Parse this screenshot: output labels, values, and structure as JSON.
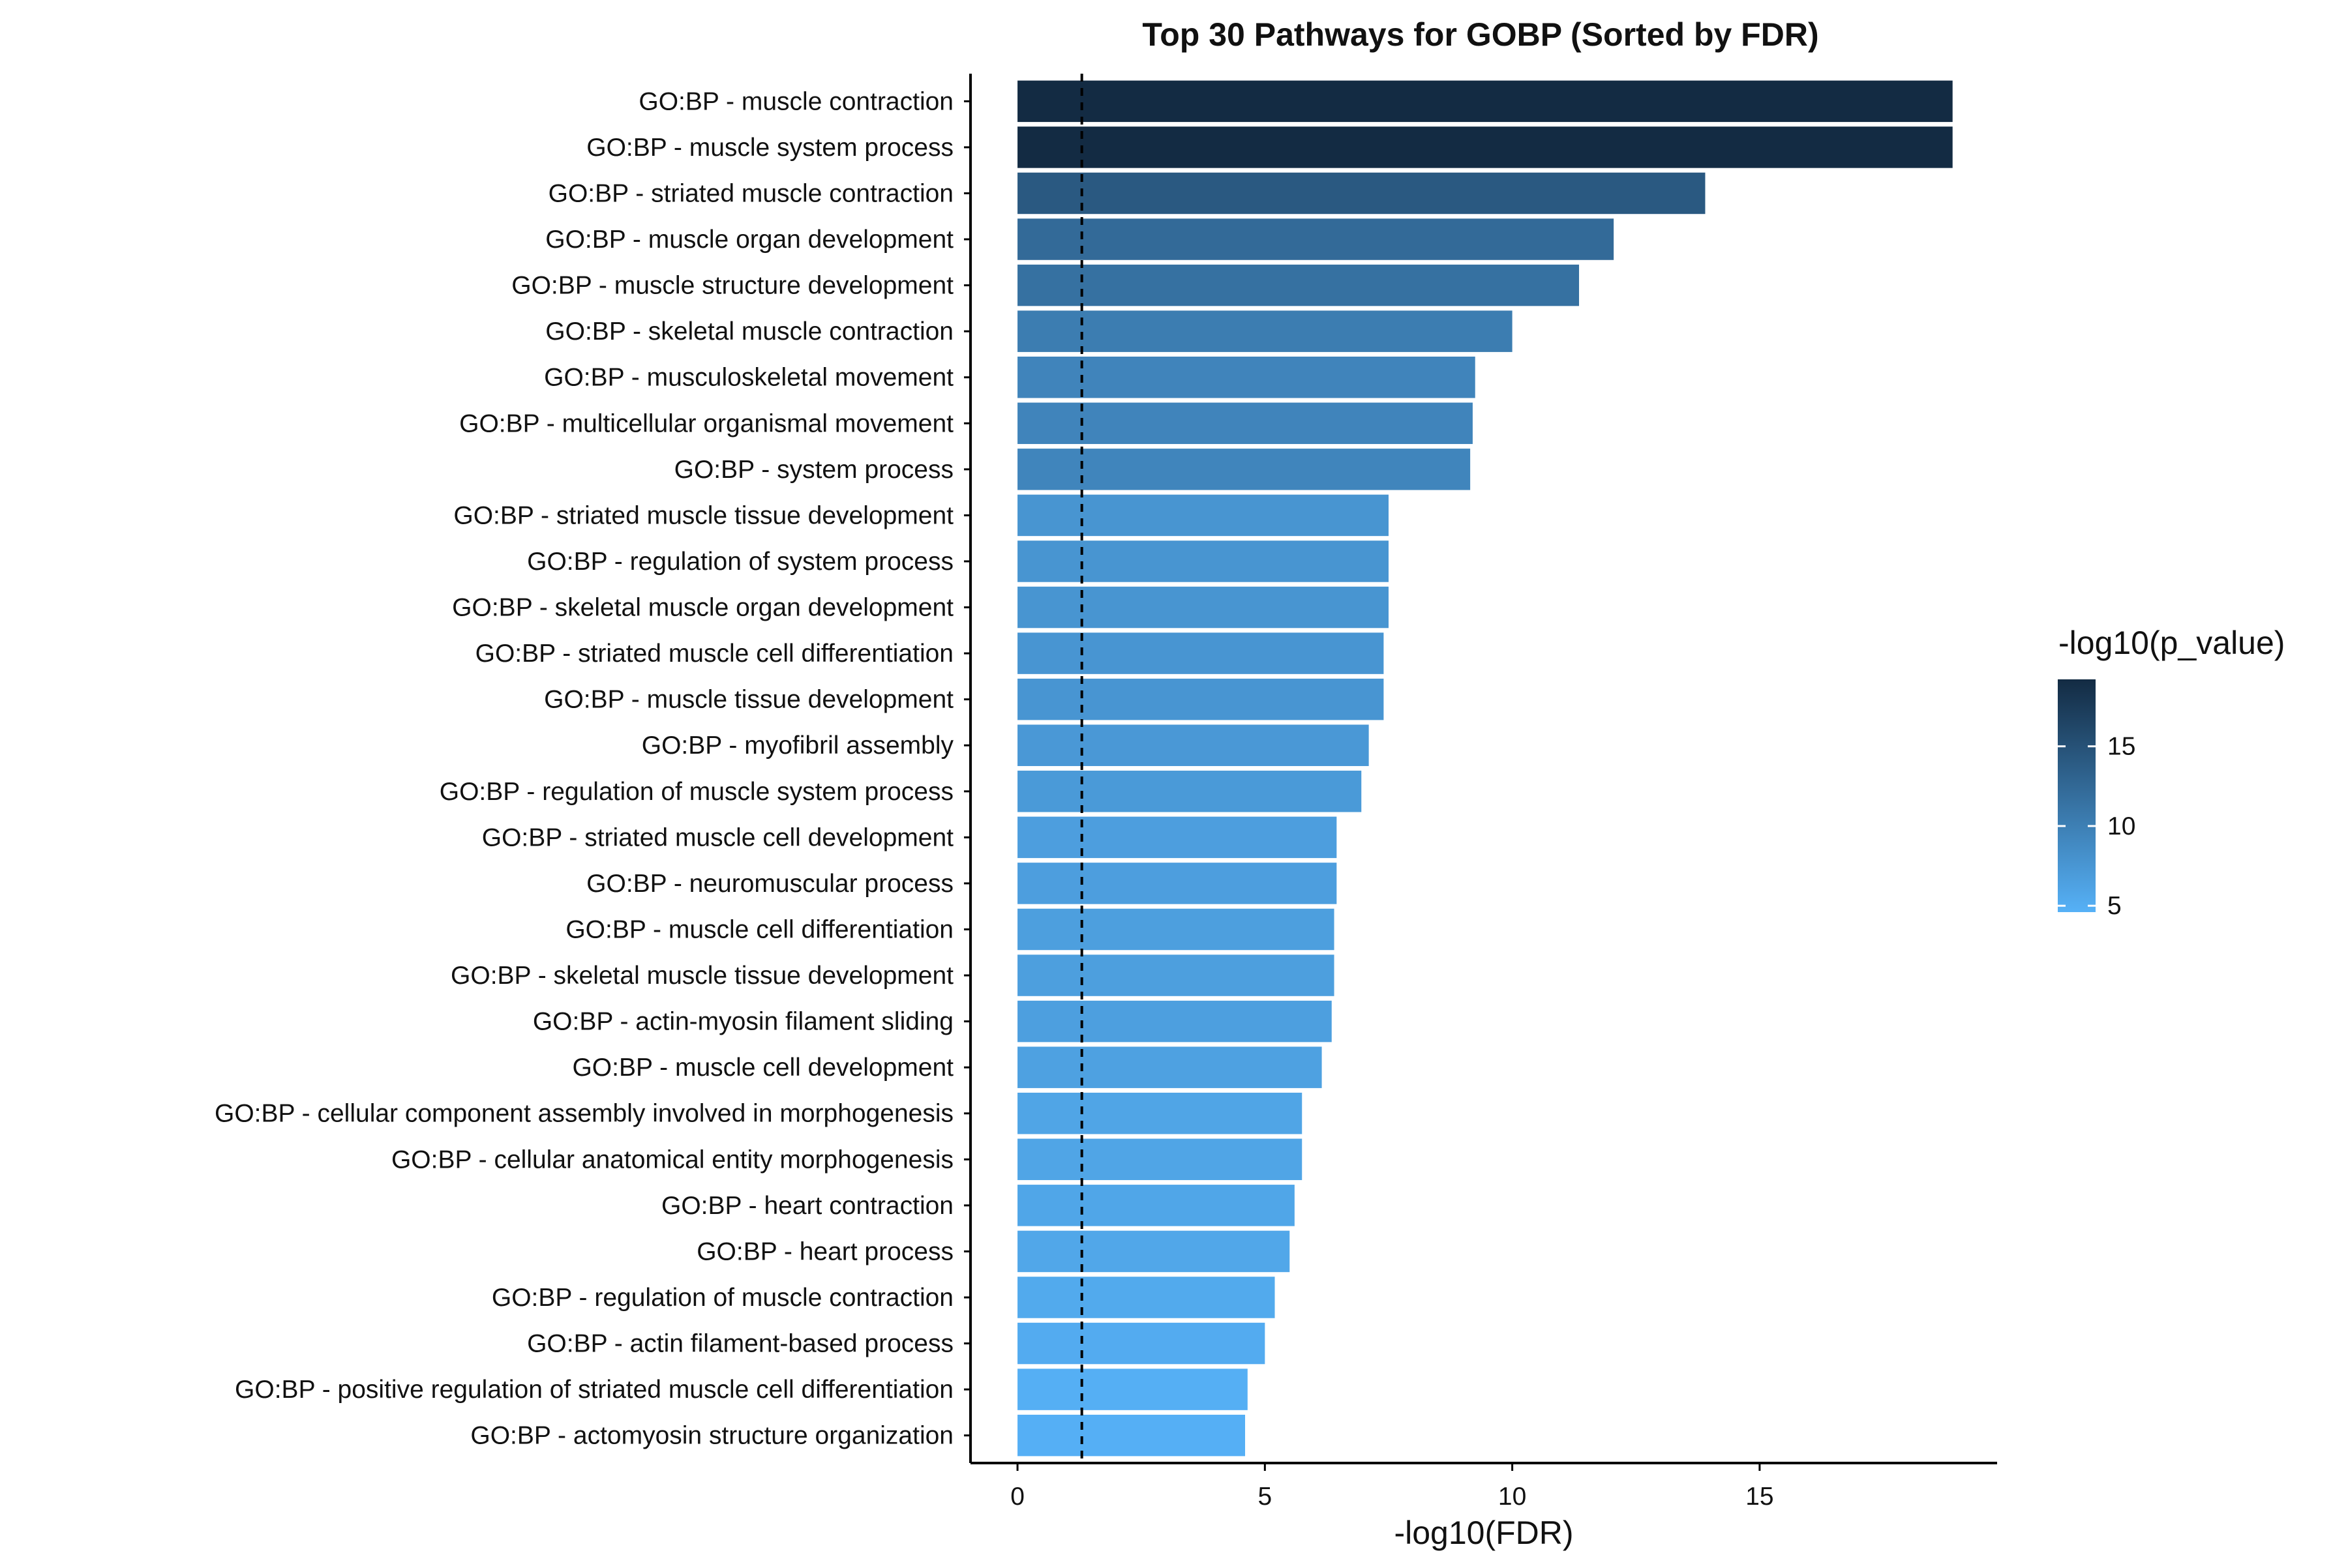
{
  "chart_data": {
    "type": "bar",
    "orientation": "horizontal",
    "title": "Top 30 Pathways for GOBP (Sorted by FDR)",
    "xlabel": "-log10(FDR)",
    "ylabel": "",
    "xlim": [
      -0.95,
      19.8
    ],
    "xticks": [
      0,
      5,
      10,
      15
    ],
    "reference_line": {
      "x": 1.3,
      "style": "dashed",
      "color": "#000000"
    },
    "grid": false,
    "legend": {
      "title": "-log10(p_value)",
      "placement": "right",
      "ticks": [
        5,
        10,
        15
      ],
      "range": [
        4.6,
        19.2
      ],
      "color_low": "#56B1F7",
      "color_high": "#132B43"
    },
    "categories": [
      "GO:BP - muscle contraction",
      "GO:BP - muscle system process",
      "GO:BP - striated muscle contraction",
      "GO:BP - muscle organ development",
      "GO:BP - muscle structure development",
      "GO:BP - skeletal muscle contraction",
      "GO:BP - musculoskeletal movement",
      "GO:BP - multicellular organismal movement",
      "GO:BP - system process",
      "GO:BP - striated muscle tissue development",
      "GO:BP - regulation of system process",
      "GO:BP - skeletal muscle organ development",
      "GO:BP - striated muscle cell differentiation",
      "GO:BP - muscle tissue development",
      "GO:BP - myofibril assembly",
      "GO:BP - regulation of muscle system process",
      "GO:BP - striated muscle cell development",
      "GO:BP - neuromuscular process",
      "GO:BP - muscle cell differentiation",
      "GO:BP - skeletal muscle tissue development",
      "GO:BP - actin-myosin filament sliding",
      "GO:BP - muscle cell development",
      "GO:BP - cellular component assembly involved in morphogenesis",
      "GO:BP - cellular anatomical entity morphogenesis",
      "GO:BP - heart contraction",
      "GO:BP - heart process",
      "GO:BP - regulation of muscle contraction",
      "GO:BP - actin filament-based process",
      "GO:BP - positive regulation of striated muscle cell differentiation",
      "GO:BP - actomyosin structure organization"
    ],
    "values": [
      18.9,
      18.9,
      13.9,
      12.05,
      11.35,
      10.0,
      9.25,
      9.2,
      9.15,
      7.5,
      7.5,
      7.5,
      7.4,
      7.4,
      7.1,
      6.95,
      6.45,
      6.45,
      6.4,
      6.4,
      6.35,
      6.15,
      5.75,
      5.75,
      5.6,
      5.5,
      5.2,
      5.0,
      4.65,
      4.6
    ],
    "color_values": [
      19.2,
      19.2,
      14.2,
      12.3,
      11.6,
      10.3,
      9.5,
      9.45,
      9.4,
      7.7,
      7.7,
      7.7,
      7.6,
      7.6,
      7.3,
      7.15,
      6.65,
      6.65,
      6.6,
      6.6,
      6.55,
      6.35,
      5.95,
      5.95,
      5.8,
      5.7,
      5.4,
      5.2,
      4.85,
      4.8
    ]
  }
}
